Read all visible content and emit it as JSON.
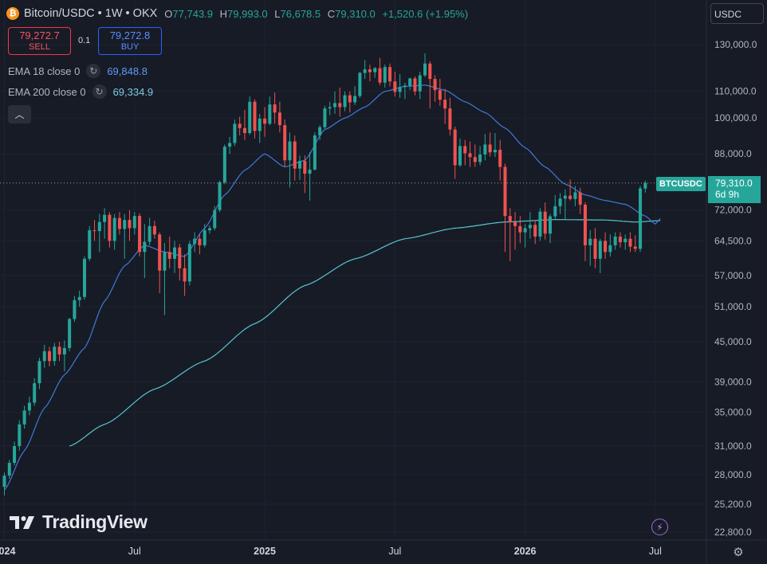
{
  "header": {
    "symbol": "Bitcoin/USDC",
    "interval": "1W",
    "exchange": "OKX",
    "ohlc": [
      {
        "k": "O",
        "v": "77,743.9"
      },
      {
        "k": "H",
        "v": "79,993.0"
      },
      {
        "k": "L",
        "v": "76,678.5"
      },
      {
        "k": "C",
        "v": "79,310.0"
      }
    ],
    "change": "+1,520.6 (+1.95%)"
  },
  "trade": {
    "sell_price": "79,272.7",
    "sell_label": "SELL",
    "buy_price": "79,272.8",
    "buy_label": "BUY",
    "spread": "0.1"
  },
  "indicators": [
    {
      "name": "EMA 18 close 0",
      "value": "69,848.8"
    },
    {
      "name": "EMA 200 close 0",
      "value": "69,334.9"
    }
  ],
  "currency_button": "USDC",
  "price_label": {
    "symbol": "BTCUSDC",
    "price": "79,310.0",
    "countdown": "6d 9h"
  },
  "branding": "TradingView",
  "colors": {
    "up": "#26a69a",
    "down": "#ef5350",
    "ema18": "#3f7ad9",
    "ema200": "#56c5d0",
    "background": "#171b26"
  },
  "chart_data": {
    "type": "candlestick",
    "scale": "log",
    "y_ticks": [
      130000,
      110000,
      100000,
      88000,
      72000,
      64500,
      57000,
      51000,
      45000,
      39000,
      35000,
      31000,
      28000,
      25200,
      22800
    ],
    "y_tick_labels": [
      "130,000.0",
      "110,000.0",
      "100,000.0",
      "88,000.0",
      "72,000.0",
      "64,500.0",
      "57,000.0",
      "51,000.0",
      "45,000.0",
      "39,000.0",
      "35,000.0",
      "31,000.0",
      "28,000.0",
      "25,200.0",
      "22,800.0"
    ],
    "x_labels": [
      {
        "label": "2024",
        "week": 0
      },
      {
        "label": "Jul",
        "week": 26
      },
      {
        "label": "2025",
        "week": 52
      },
      {
        "label": "Jul",
        "week": 78
      },
      {
        "label": "2026",
        "week": 104
      },
      {
        "label": "Jul",
        "week": 130
      }
    ],
    "last_price": 79310,
    "ema18_anchors": [
      [
        0,
        26500
      ],
      [
        4,
        30500
      ],
      [
        8,
        35500
      ],
      [
        12,
        40000
      ],
      [
        16,
        44000
      ],
      [
        20,
        52000
      ],
      [
        24,
        59000
      ],
      [
        28,
        63500
      ],
      [
        32,
        62000
      ],
      [
        36,
        61000
      ],
      [
        40,
        67500
      ],
      [
        44,
        76000
      ],
      [
        48,
        83000
      ],
      [
        52,
        88000
      ],
      [
        56,
        84000
      ],
      [
        60,
        86000
      ],
      [
        64,
        96000
      ],
      [
        68,
        100000
      ],
      [
        72,
        104000
      ],
      [
        76,
        110000
      ],
      [
        80,
        112000
      ],
      [
        84,
        112500
      ],
      [
        88,
        110500
      ],
      [
        92,
        106000
      ],
      [
        96,
        102000
      ],
      [
        100,
        96500
      ],
      [
        104,
        90000
      ],
      [
        108,
        84000
      ],
      [
        112,
        79000
      ],
      [
        116,
        76000
      ],
      [
        120,
        74500
      ],
      [
        124,
        73500
      ],
      [
        128,
        70500
      ],
      [
        130,
        68500
      ],
      [
        131,
        69848
      ]
    ],
    "ema200_anchors": [
      [
        13,
        31000
      ],
      [
        20,
        33500
      ],
      [
        30,
        38000
      ],
      [
        40,
        42000
      ],
      [
        50,
        48000
      ],
      [
        60,
        55000
      ],
      [
        70,
        60500
      ],
      [
        80,
        65000
      ],
      [
        90,
        67500
      ],
      [
        100,
        69000
      ],
      [
        110,
        69600
      ],
      [
        120,
        69500
      ],
      [
        126,
        69000
      ],
      [
        131,
        69335
      ]
    ],
    "candles": [
      [
        26800,
        28200,
        26000,
        27900
      ],
      [
        27900,
        29500,
        27600,
        29200
      ],
      [
        29200,
        31500,
        28900,
        31000
      ],
      [
        31000,
        34000,
        30500,
        33500
      ],
      [
        33500,
        35800,
        33000,
        35200
      ],
      [
        35200,
        37000,
        34600,
        36200
      ],
      [
        36200,
        39500,
        35800,
        38800
      ],
      [
        38800,
        42500,
        38000,
        42000
      ],
      [
        42000,
        44500,
        41000,
        43500
      ],
      [
        43500,
        44200,
        41200,
        42000
      ],
      [
        42000,
        44800,
        41300,
        44200
      ],
      [
        44200,
        45000,
        42000,
        43000
      ],
      [
        43000,
        45200,
        40500,
        44000
      ],
      [
        44000,
        49000,
        43500,
        48800
      ],
      [
        48800,
        53000,
        48300,
        52200
      ],
      [
        52200,
        54000,
        51000,
        52800
      ],
      [
        52800,
        61000,
        52300,
        60500
      ],
      [
        60500,
        68000,
        60000,
        67000
      ],
      [
        67000,
        69500,
        64500,
        66800
      ],
      [
        66800,
        71000,
        62000,
        69000
      ],
      [
        69000,
        72500,
        65000,
        70800
      ],
      [
        70800,
        71500,
        63000,
        64500
      ],
      [
        64500,
        71000,
        62500,
        70000
      ],
      [
        70000,
        71500,
        66000,
        67300
      ],
      [
        67300,
        71000,
        60500,
        69500
      ],
      [
        69500,
        72000,
        64500,
        67500
      ],
      [
        67500,
        71500,
        66000,
        70500
      ],
      [
        70500,
        71200,
        61000,
        62000
      ],
      [
        62000,
        68500,
        56500,
        64300
      ],
      [
        64300,
        70000,
        63500,
        68000
      ],
      [
        68000,
        69300,
        65000,
        66000
      ],
      [
        66000,
        66500,
        53500,
        58000
      ],
      [
        58000,
        64000,
        49500,
        62000
      ],
      [
        62000,
        65500,
        58500,
        60500
      ],
      [
        60500,
        64500,
        57500,
        63000
      ],
      [
        63000,
        63800,
        56000,
        58500
      ],
      [
        58500,
        61500,
        53000,
        55800
      ],
      [
        55800,
        64500,
        55000,
        63800
      ],
      [
        63800,
        66500,
        62000,
        65000
      ],
      [
        65000,
        66000,
        61500,
        63500
      ],
      [
        63500,
        68500,
        63000,
        67000
      ],
      [
        67000,
        68200,
        66200,
        67500
      ],
      [
        67500,
        73000,
        67000,
        72000
      ],
      [
        72000,
        80000,
        71500,
        79500
      ],
      [
        79500,
        91000,
        79000,
        90300
      ],
      [
        90300,
        93500,
        88000,
        91500
      ],
      [
        91500,
        99500,
        90500,
        98000
      ],
      [
        98000,
        100500,
        94000,
        96500
      ],
      [
        96500,
        103000,
        92500,
        94800
      ],
      [
        94800,
        108000,
        94200,
        106000
      ],
      [
        106000,
        107000,
        93000,
        95500
      ],
      [
        95500,
        101500,
        91500,
        99800
      ],
      [
        99800,
        104000,
        93500,
        98000
      ],
      [
        98000,
        108000,
        97500,
        105000
      ],
      [
        105000,
        109500,
        98000,
        102000
      ],
      [
        102000,
        106000,
        95000,
        97500
      ],
      [
        97500,
        99500,
        84000,
        86000
      ],
      [
        86000,
        95000,
        78000,
        92000
      ],
      [
        92000,
        94000,
        80000,
        83500
      ],
      [
        83500,
        87500,
        80200,
        85800
      ],
      [
        85800,
        87500,
        76500,
        82000
      ],
      [
        82000,
        88500,
        74500,
        83200
      ],
      [
        83200,
        95000,
        83000,
        94000
      ],
      [
        94000,
        97500,
        92500,
        96800
      ],
      [
        96800,
        104500,
        96000,
        103500
      ],
      [
        103500,
        106000,
        101000,
        104000
      ],
      [
        104000,
        110000,
        101500,
        105500
      ],
      [
        105500,
        111500,
        100500,
        104000
      ],
      [
        104000,
        110000,
        102500,
        108500
      ],
      [
        108500,
        110000,
        102000,
        105800
      ],
      [
        105800,
        112000,
        104800,
        108200
      ],
      [
        108200,
        118000,
        107500,
        117500
      ],
      [
        117500,
        123000,
        115000,
        119000
      ],
      [
        119000,
        121000,
        114000,
        117800
      ],
      [
        117800,
        120000,
        115500,
        119500
      ],
      [
        119500,
        124000,
        112500,
        113500
      ],
      [
        113500,
        121000,
        111500,
        120000
      ],
      [
        120000,
        121500,
        112000,
        114000
      ],
      [
        114000,
        118000,
        108000,
        109800
      ],
      [
        109800,
        117000,
        107500,
        111700
      ],
      [
        111700,
        113500,
        107000,
        112300
      ],
      [
        112300,
        115500,
        110500,
        115200
      ],
      [
        115200,
        116000,
        108500,
        110000
      ],
      [
        110000,
        118000,
        107000,
        116500
      ],
      [
        116500,
        126000,
        115800,
        121500
      ],
      [
        121500,
        122500,
        103500,
        115000
      ],
      [
        115000,
        116500,
        106000,
        110500
      ],
      [
        110500,
        115000,
        104500,
        106800
      ],
      [
        106800,
        111000,
        98000,
        103500
      ],
      [
        103500,
        107500,
        94000,
        96000
      ],
      [
        96000,
        97000,
        80500,
        84500
      ],
      [
        84500,
        93000,
        84000,
        90500
      ],
      [
        90500,
        92500,
        84500,
        88200
      ],
      [
        88200,
        92000,
        84000,
        87000
      ],
      [
        87000,
        91000,
        84000,
        85500
      ],
      [
        85500,
        90500,
        84500,
        87800
      ],
      [
        87800,
        94500,
        86000,
        91000
      ],
      [
        91000,
        95000,
        87200,
        88500
      ],
      [
        88500,
        94800,
        87000,
        89300
      ],
      [
        89300,
        92500,
        80000,
        84000
      ],
      [
        84000,
        85000,
        62000,
        70500
      ],
      [
        70500,
        72500,
        60000,
        69000
      ],
      [
        69000,
        71500,
        62500,
        68000
      ],
      [
        68000,
        70500,
        64000,
        66500
      ],
      [
        66500,
        68500,
        63000,
        67500
      ],
      [
        67500,
        71500,
        65000,
        68300
      ],
      [
        68300,
        69500,
        63800,
        65500
      ],
      [
        65500,
        72500,
        64500,
        71600
      ],
      [
        71600,
        74000,
        64800,
        66200
      ],
      [
        66200,
        71000,
        64000,
        70400
      ],
      [
        70400,
        76000,
        69500,
        73000
      ],
      [
        73000,
        76500,
        71000,
        75000
      ],
      [
        75000,
        77500,
        69500,
        75800
      ],
      [
        75800,
        80300,
        74500,
        74900
      ],
      [
        74900,
        78500,
        73000,
        76700
      ],
      [
        76700,
        78000,
        71000,
        73400
      ],
      [
        73400,
        74000,
        60000,
        63500
      ],
      [
        63500,
        67000,
        59000,
        65000
      ],
      [
        65000,
        67500,
        58500,
        60500
      ],
      [
        60500,
        65000,
        57500,
        64500
      ],
      [
        64500,
        66500,
        60500,
        62000
      ],
      [
        62000,
        66000,
        61000,
        63500
      ],
      [
        63500,
        66500,
        62500,
        65500
      ],
      [
        65500,
        66500,
        63000,
        64200
      ],
      [
        64200,
        66000,
        62500,
        65000
      ],
      [
        65000,
        66500,
        62000,
        63200
      ],
      [
        63200,
        65800,
        62000,
        62700
      ],
      [
        62700,
        78500,
        62000,
        77800
      ],
      [
        77743.9,
        79993.0,
        76678.5,
        79310.0
      ]
    ]
  }
}
